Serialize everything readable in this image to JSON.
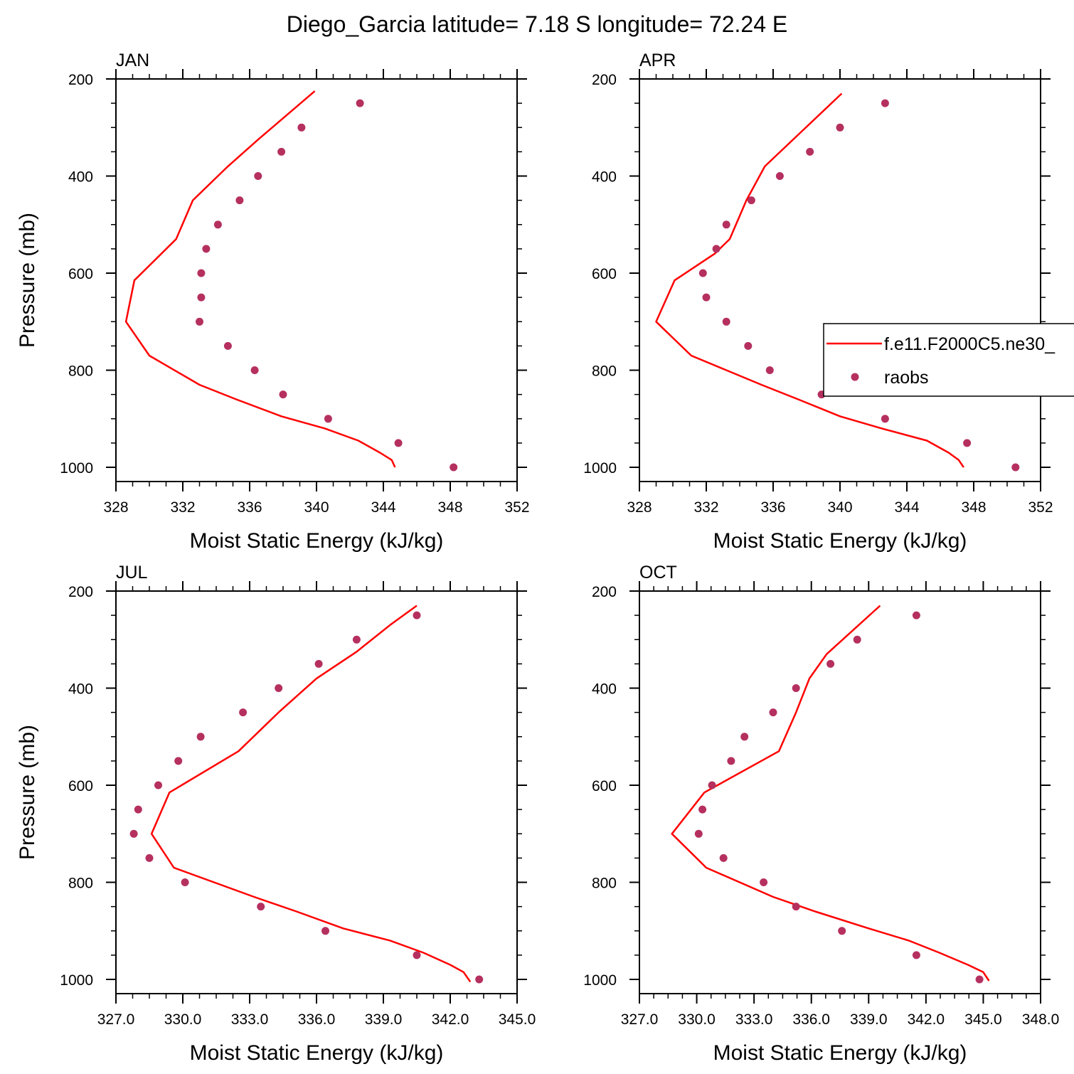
{
  "figure": {
    "title": "Diego_Garcia  latitude= 7.18 S longitude= 72.24 E"
  },
  "legend": {
    "entries": [
      {
        "label": "f.e11.F2000C5.ne30_",
        "kind": "line"
      },
      {
        "label": "raobs",
        "kind": "marker"
      }
    ]
  },
  "colors": {
    "model_line": "#ff0000",
    "obs_marker": "#b5305f"
  },
  "chart_data": [
    {
      "type": "line",
      "panel_title": "JAN",
      "xlabel": "Moist Static Energy (kJ/kg)",
      "ylabel": "Pressure (mb)",
      "xlim": [
        328,
        352
      ],
      "ylim": [
        200,
        1000
      ],
      "y_reversed": true,
      "xticks": [
        328,
        332,
        336,
        340,
        344,
        348,
        352
      ],
      "xtick_labels": [
        "328",
        "332",
        "336",
        "340",
        "344",
        "348",
        "352"
      ],
      "yticks": [
        200,
        400,
        600,
        800,
        1000
      ],
      "ytick_labels": [
        "200",
        "400",
        "600",
        "800",
        "1000"
      ],
      "series": [
        {
          "name": "f.e11.F2000C5.ne30_",
          "style": "line",
          "pressure": [
            225,
            275,
            325,
            380,
            450,
            530,
            615,
            700,
            770,
            830,
            860,
            895,
            920,
            945,
            970,
            985,
            1000
          ],
          "mse": [
            339.9,
            338.2,
            336.5,
            334.7,
            332.6,
            331.6,
            329.1,
            328.6,
            330.0,
            333.0,
            335.2,
            337.9,
            340.5,
            342.5,
            343.8,
            344.5,
            344.7
          ]
        },
        {
          "name": "raobs",
          "style": "markers",
          "pressure": [
            250,
            300,
            350,
            400,
            450,
            500,
            550,
            600,
            650,
            700,
            750,
            800,
            850,
            900,
            950,
            1000
          ],
          "mse": [
            342.6,
            339.1,
            337.9,
            336.5,
            335.4,
            334.1,
            333.4,
            333.1,
            333.1,
            333.0,
            334.7,
            336.3,
            338.0,
            340.7,
            344.9,
            348.2
          ]
        }
      ]
    },
    {
      "type": "line",
      "panel_title": "APR",
      "xlabel": "Moist Static Energy (kJ/kg)",
      "ylabel": "",
      "xlim": [
        328,
        352
      ],
      "ylim": [
        200,
        1000
      ],
      "y_reversed": true,
      "xticks": [
        328,
        332,
        336,
        340,
        344,
        348,
        352
      ],
      "xtick_labels": [
        "328",
        "332",
        "336",
        "340",
        "344",
        "348",
        "352"
      ],
      "yticks": [
        200,
        400,
        600,
        800,
        1000
      ],
      "ytick_labels": [
        "200",
        "400",
        "600",
        "800",
        "1000"
      ],
      "series": [
        {
          "name": "f.e11.F2000C5.ne30_",
          "style": "line",
          "pressure": [
            230,
            380,
            450,
            530,
            560,
            615,
            700,
            770,
            830,
            860,
            895,
            920,
            945,
            970,
            985,
            1000
          ],
          "mse": [
            340.1,
            335.5,
            334.4,
            333.4,
            332.5,
            330.1,
            329.0,
            331.1,
            335.3,
            337.5,
            340.0,
            342.5,
            345.2,
            346.5,
            347.1,
            347.4
          ]
        },
        {
          "name": "raobs",
          "style": "markers",
          "pressure": [
            250,
            300,
            350,
            400,
            450,
            500,
            550,
            600,
            650,
            700,
            750,
            800,
            850,
            900,
            950,
            1000
          ],
          "mse": [
            342.7,
            340.0,
            338.2,
            336.4,
            334.7,
            333.2,
            332.6,
            331.8,
            332.0,
            333.2,
            334.5,
            335.8,
            338.9,
            342.7,
            347.6,
            350.5
          ]
        }
      ]
    },
    {
      "type": "line",
      "panel_title": "JUL",
      "xlabel": "Moist Static Energy (kJ/kg)",
      "ylabel": "Pressure (mb)",
      "xlim": [
        327.0,
        345.0
      ],
      "ylim": [
        200,
        1000
      ],
      "y_reversed": true,
      "xticks": [
        327,
        330,
        333,
        336,
        339,
        342,
        345
      ],
      "xtick_labels": [
        "327.0",
        "330.0",
        "333.0",
        "336.0",
        "339.0",
        "342.0",
        "345.0"
      ],
      "yticks": [
        200,
        400,
        600,
        800,
        1000
      ],
      "ytick_labels": [
        "200",
        "400",
        "600",
        "800",
        "1000"
      ],
      "series": [
        {
          "name": "f.e11.F2000C5.ne30_",
          "style": "line",
          "pressure": [
            230,
            270,
            325,
            380,
            450,
            530,
            615,
            700,
            770,
            830,
            860,
            895,
            920,
            945,
            970,
            985,
            1005
          ],
          "mse": [
            340.5,
            339.3,
            337.8,
            336.0,
            334.3,
            332.5,
            329.4,
            328.6,
            329.6,
            333.2,
            335.1,
            337.2,
            339.3,
            340.8,
            342.0,
            342.6,
            342.9
          ]
        },
        {
          "name": "raobs",
          "style": "markers",
          "pressure": [
            250,
            300,
            350,
            400,
            450,
            500,
            550,
            600,
            650,
            700,
            750,
            800,
            850,
            900,
            950,
            1000
          ],
          "mse": [
            340.5,
            337.8,
            336.1,
            334.3,
            332.7,
            330.8,
            329.8,
            328.9,
            328.0,
            327.8,
            328.5,
            330.1,
            333.5,
            336.4,
            340.5,
            343.3
          ]
        }
      ]
    },
    {
      "type": "line",
      "panel_title": "OCT",
      "xlabel": "Moist Static Energy (kJ/kg)",
      "ylabel": "",
      "xlim": [
        327.0,
        348.0
      ],
      "ylim": [
        200,
        1000
      ],
      "y_reversed": true,
      "xticks": [
        327,
        330,
        333,
        336,
        339,
        342,
        345,
        348
      ],
      "xtick_labels": [
        "327.0",
        "330.0",
        "333.0",
        "336.0",
        "339.0",
        "342.0",
        "345.0",
        "348.0"
      ],
      "yticks": [
        200,
        400,
        600,
        800,
        1000
      ],
      "ytick_labels": [
        "200",
        "400",
        "600",
        "800",
        "1000"
      ],
      "series": [
        {
          "name": "f.e11.F2000C5.ne30_",
          "style": "line",
          "pressure": [
            230,
            330,
            380,
            450,
            530,
            615,
            700,
            770,
            830,
            860,
            895,
            920,
            945,
            970,
            985,
            1003
          ],
          "mse": [
            339.6,
            336.8,
            335.9,
            335.2,
            334.3,
            330.4,
            328.7,
            330.5,
            334.0,
            336.2,
            339.0,
            341.1,
            342.7,
            344.2,
            345.0,
            345.3
          ]
        },
        {
          "name": "raobs",
          "style": "markers",
          "pressure": [
            250,
            300,
            350,
            400,
            450,
            500,
            550,
            600,
            650,
            700,
            750,
            800,
            850,
            900,
            950,
            1000
          ],
          "mse": [
            341.5,
            338.4,
            337.0,
            335.2,
            334.0,
            332.5,
            331.8,
            330.8,
            330.3,
            330.1,
            331.4,
            333.5,
            335.2,
            337.6,
            341.5,
            344.8
          ]
        }
      ]
    }
  ]
}
